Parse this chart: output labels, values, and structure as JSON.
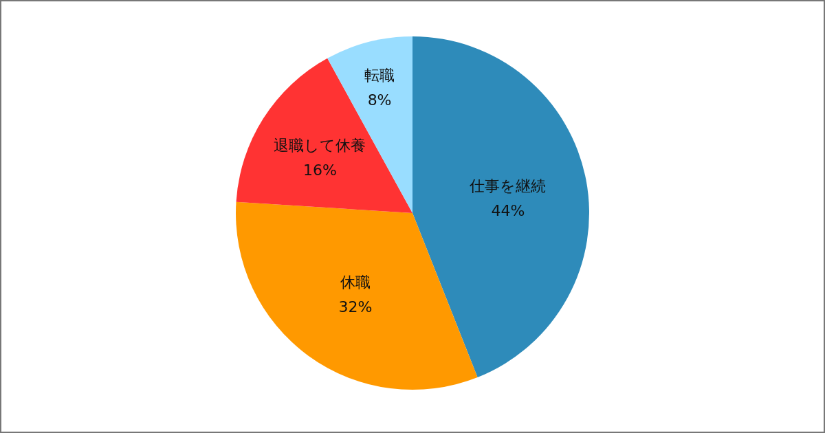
{
  "chart_data": {
    "type": "pie",
    "categories": [
      "仕事を継続",
      "休職",
      "退職して休養",
      "転職"
    ],
    "values": [
      44,
      32,
      16,
      8
    ],
    "value_labels": [
      "44%",
      "32%",
      "16%",
      "8%"
    ],
    "colors": [
      "#2e8bba",
      "#ff9900",
      "#ff3333",
      "#99ddff"
    ]
  }
}
